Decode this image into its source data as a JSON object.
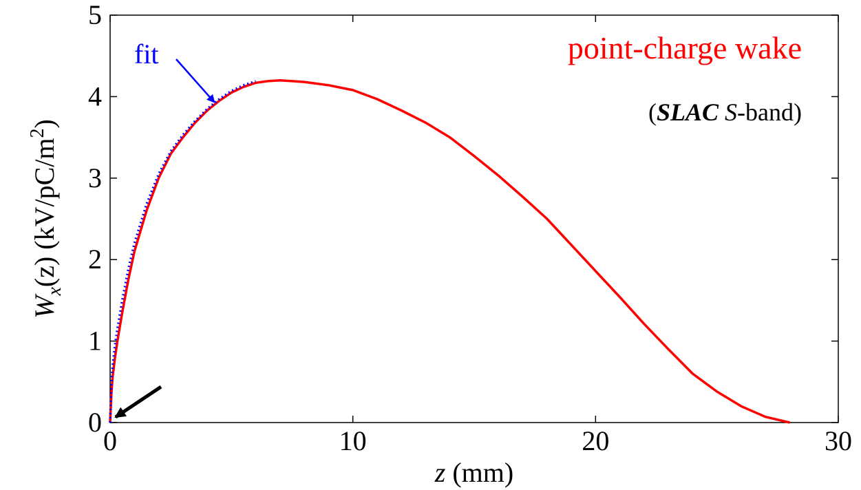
{
  "chart_data": {
    "type": "line",
    "title": "point-charge wake",
    "subtitle": {
      "open": "(",
      "part1": "SLAC",
      "part2": " ",
      "part3": "S",
      "part4": "-band)"
    },
    "xlabel": {
      "var": "z",
      "units": " (mm)"
    },
    "ylabel": {
      "W": "W",
      "sub": "x",
      "arg": "(z)",
      "units_pre": " (kV/pC/m",
      "sup": "2",
      "units_post": ")"
    },
    "xlim": [
      0,
      30
    ],
    "ylim": [
      0,
      5
    ],
    "xticks": [
      0,
      10,
      20,
      30
    ],
    "yticks": [
      0,
      1,
      2,
      3,
      4,
      5
    ],
    "grid": false,
    "series": [
      {
        "color": "#ff0000",
        "style": "solid",
        "x": [
          0,
          0.05,
          0.1,
          0.2,
          0.3,
          0.5,
          0.75,
          1.0,
          1.5,
          2.0,
          2.5,
          3.0,
          3.5,
          4.0,
          4.5,
          5.0,
          5.5,
          6.0,
          6.5,
          7.0,
          7.5,
          8.0,
          9.0,
          10.0,
          11.0,
          12.0,
          13.0,
          14.0,
          15.0,
          16.0,
          17.0,
          18.0,
          19.0,
          20.0,
          21.0,
          22.0,
          23.0,
          24.0,
          25.0,
          26.0,
          27.0,
          28.0
        ],
        "y": [
          0,
          0.35,
          0.55,
          0.8,
          1.0,
          1.35,
          1.75,
          2.1,
          2.6,
          3.0,
          3.3,
          3.5,
          3.68,
          3.83,
          3.95,
          4.05,
          4.12,
          4.17,
          4.19,
          4.2,
          4.19,
          4.18,
          4.14,
          4.08,
          3.97,
          3.83,
          3.68,
          3.5,
          3.27,
          3.03,
          2.77,
          2.5,
          2.18,
          1.86,
          1.54,
          1.21,
          0.9,
          0.6,
          0.38,
          0.2,
          0.07,
          0.0
        ]
      },
      {
        "name": "fit",
        "color": "#0000ff",
        "style": "dotted",
        "x": [
          0,
          0.05,
          0.1,
          0.2,
          0.3,
          0.5,
          0.75,
          1.0,
          1.5,
          2.0,
          2.5,
          3.0,
          3.5,
          4.0,
          4.5,
          5.0,
          5.5,
          6.0
        ],
        "y": [
          0,
          0.45,
          0.68,
          0.95,
          1.15,
          1.5,
          1.88,
          2.2,
          2.68,
          3.05,
          3.33,
          3.53,
          3.7,
          3.85,
          3.97,
          4.07,
          4.14,
          4.19
        ]
      }
    ],
    "annotations": {
      "fit_label": "fit",
      "fit_arrow_target": [
        4.4,
        3.9
      ],
      "origin_arrow_target": [
        0,
        0
      ]
    }
  }
}
